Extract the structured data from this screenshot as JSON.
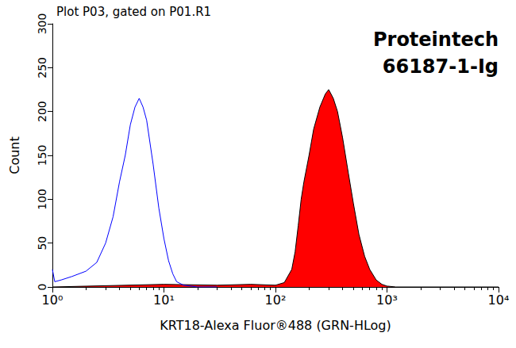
{
  "chart_data": {
    "type": "line",
    "title": "Plot P03, gated on P01.R1",
    "annotations": [
      "Proteintech",
      "66187-1-Ig"
    ],
    "x_label": "KRT18-Alexa Fluor®488 (GRN-HLog)",
    "y_label": "Count",
    "log": "x",
    "grid": false,
    "xlim": [
      1,
      10000
    ],
    "xticks": [
      {
        "value": 1,
        "label": "10⁰"
      },
      {
        "value": 10,
        "label": "10¹"
      },
      {
        "value": 100,
        "label": "10²"
      },
      {
        "value": 1000,
        "label": "10³"
      },
      {
        "value": 10000,
        "label": "10⁴"
      }
    ],
    "ylim": [
      0,
      300
    ],
    "yticks": [
      0,
      50,
      100,
      150,
      200,
      250,
      300
    ],
    "series": [
      {
        "type": "line",
        "color": "#0000ff",
        "x": [
          1,
          1.05,
          1.2,
          1.5,
          2,
          2.5,
          3,
          3.5,
          4,
          4.5,
          5,
          5.5,
          6,
          6.5,
          7,
          8,
          9,
          10,
          11,
          12,
          13,
          15,
          20,
          30
        ],
        "values": [
          20,
          6,
          8,
          12,
          18,
          28,
          50,
          80,
          120,
          150,
          185,
          205,
          215,
          205,
          190,
          140,
          90,
          55,
          30,
          15,
          6,
          2,
          0,
          0
        ]
      },
      {
        "type": "area",
        "color": "#ff0000",
        "x": [
          1,
          10,
          30,
          60,
          100,
          120,
          140,
          150,
          160,
          170,
          180,
          200,
          220,
          250,
          280,
          300,
          330,
          360,
          400,
          450,
          500,
          560,
          630,
          700,
          800,
          900,
          1000,
          1200,
          10000
        ],
        "values": [
          0,
          3,
          2,
          3,
          2,
          5,
          20,
          40,
          70,
          100,
          120,
          150,
          180,
          205,
          220,
          225,
          215,
          200,
          170,
          130,
          95,
          60,
          35,
          20,
          8,
          3,
          1,
          0,
          0
        ]
      }
    ]
  }
}
